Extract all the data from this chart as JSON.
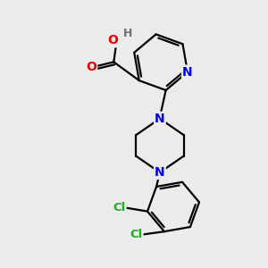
{
  "background_color": "#ebebeb",
  "bond_color": "#000000",
  "bond_width": 1.6,
  "atom_colors": {
    "N": "#0000ee",
    "O": "#ee0000",
    "H": "#707070",
    "Cl": "#22aa22",
    "C": "#000000"
  }
}
